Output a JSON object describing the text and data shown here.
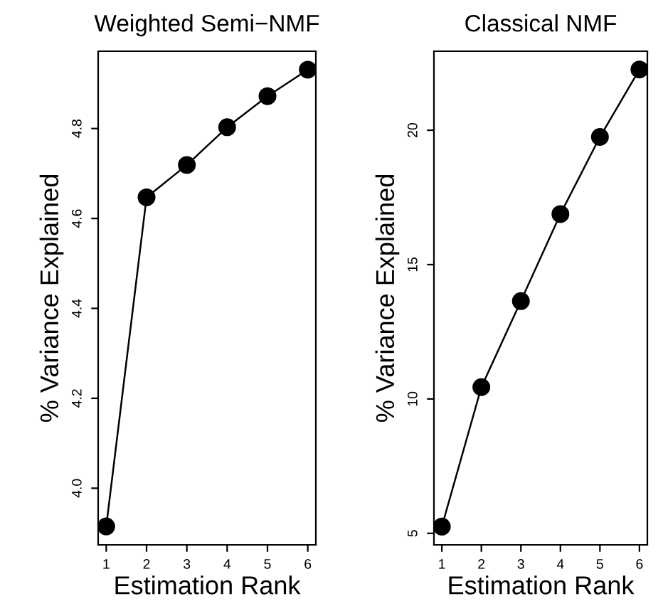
{
  "chart_data": [
    {
      "type": "line",
      "title": "Weighted Semi−NMF",
      "xlabel": "Estimation Rank",
      "ylabel": "% Variance Explained",
      "x": [
        1,
        2,
        3,
        4,
        5,
        6
      ],
      "series": [
        {
          "color": "#000000",
          "values": [
            3.915,
            4.647,
            4.719,
            4.803,
            4.872,
            4.931
          ]
        }
      ],
      "xlim": [
        0.8,
        6.2
      ],
      "xticks": [
        1,
        2,
        3,
        4,
        5,
        6
      ],
      "ylim": [
        3.874,
        4.972
      ],
      "yticks": [
        {
          "value": 4.0,
          "label": "4.0"
        },
        {
          "value": 4.2,
          "label": "4.2"
        },
        {
          "value": 4.4,
          "label": "4.4"
        },
        {
          "value": 4.6,
          "label": "4.6"
        },
        {
          "value": 4.8,
          "label": "4.8"
        }
      ],
      "marker": "circle",
      "line_style": "solid",
      "grid": false
    },
    {
      "type": "line",
      "title": "Classical NMF",
      "xlabel": "Estimation Rank",
      "ylabel": "% Variance Explained",
      "x": [
        1,
        2,
        3,
        4,
        5,
        6
      ],
      "series": [
        {
          "color": "#000000",
          "values": [
            5.25,
            10.44,
            13.64,
            16.88,
            19.75,
            22.26
          ]
        }
      ],
      "xlim": [
        0.8,
        6.2
      ],
      "xticks": [
        1,
        2,
        3,
        4,
        5,
        6
      ],
      "ylim": [
        4.57,
        22.94
      ],
      "yticks": [
        5,
        10,
        15,
        20
      ],
      "marker": "circle",
      "line_style": "solid",
      "grid": false
    }
  ]
}
